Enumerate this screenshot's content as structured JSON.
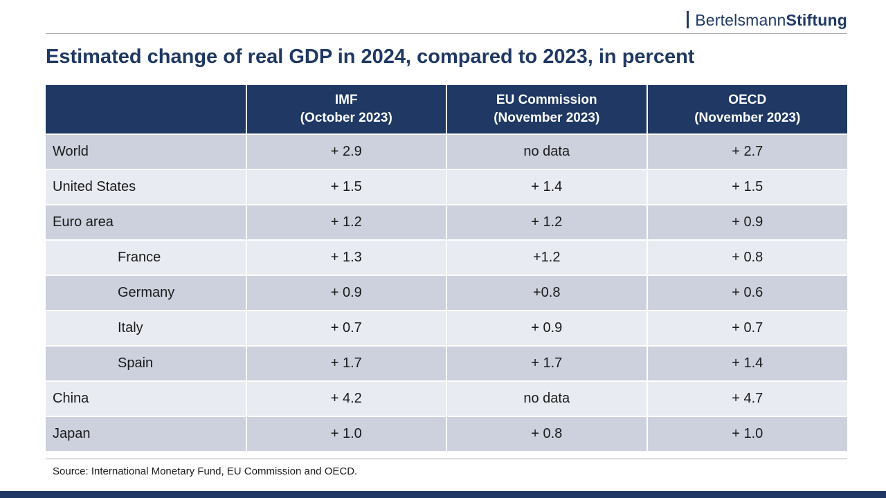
{
  "logo": {
    "regular": "Bertelsmann",
    "bold": "Stiftung"
  },
  "title": "Estimated change of real GDP in 2024, compared to 2023, in percent",
  "chart_data": {
    "type": "table",
    "title": "Estimated change of real GDP in 2024, compared to 2023, in percent",
    "unit": "percent",
    "row_header": "",
    "columns": [
      {
        "line1": "IMF",
        "line2": "(October 2023)"
      },
      {
        "line1": "EU Commission",
        "line2": "(November 2023)"
      },
      {
        "line1": "OECD",
        "line2": "(November 2023)"
      }
    ],
    "rows": [
      {
        "label": "World",
        "indent": false,
        "values": [
          "+ 2.9",
          "no data",
          "+ 2.7"
        ]
      },
      {
        "label": "United States",
        "indent": false,
        "values": [
          "+ 1.5",
          "+ 1.4",
          "+ 1.5"
        ]
      },
      {
        "label": "Euro area",
        "indent": false,
        "values": [
          "+ 1.2",
          "+ 1.2",
          "+ 0.9"
        ]
      },
      {
        "label": "France",
        "indent": true,
        "values": [
          "+ 1.3",
          "+1.2",
          "+ 0.8"
        ]
      },
      {
        "label": "Germany",
        "indent": true,
        "values": [
          "+ 0.9",
          "+0.8",
          "+ 0.6"
        ]
      },
      {
        "label": "Italy",
        "indent": true,
        "values": [
          "+ 0.7",
          "+ 0.9",
          "+ 0.7"
        ]
      },
      {
        "label": "Spain",
        "indent": true,
        "values": [
          "+ 1.7",
          "+ 1.7",
          "+ 1.4"
        ]
      },
      {
        "label": "China",
        "indent": false,
        "values": [
          "+ 4.2",
          "no data",
          "+ 4.7"
        ]
      },
      {
        "label": "Japan",
        "indent": false,
        "values": [
          "+ 1.0",
          "+ 0.8",
          "+ 1.0"
        ]
      }
    ]
  },
  "source": "Source: International Monetary Fund, EU Commission and OECD.",
  "colors": {
    "navy": "#1f3864",
    "row_dark": "#ccd1dd",
    "row_light": "#e9ebf2",
    "divider_gray": "#ababab",
    "header_text": "#ffffff",
    "body_text": "#1a1a1a"
  }
}
